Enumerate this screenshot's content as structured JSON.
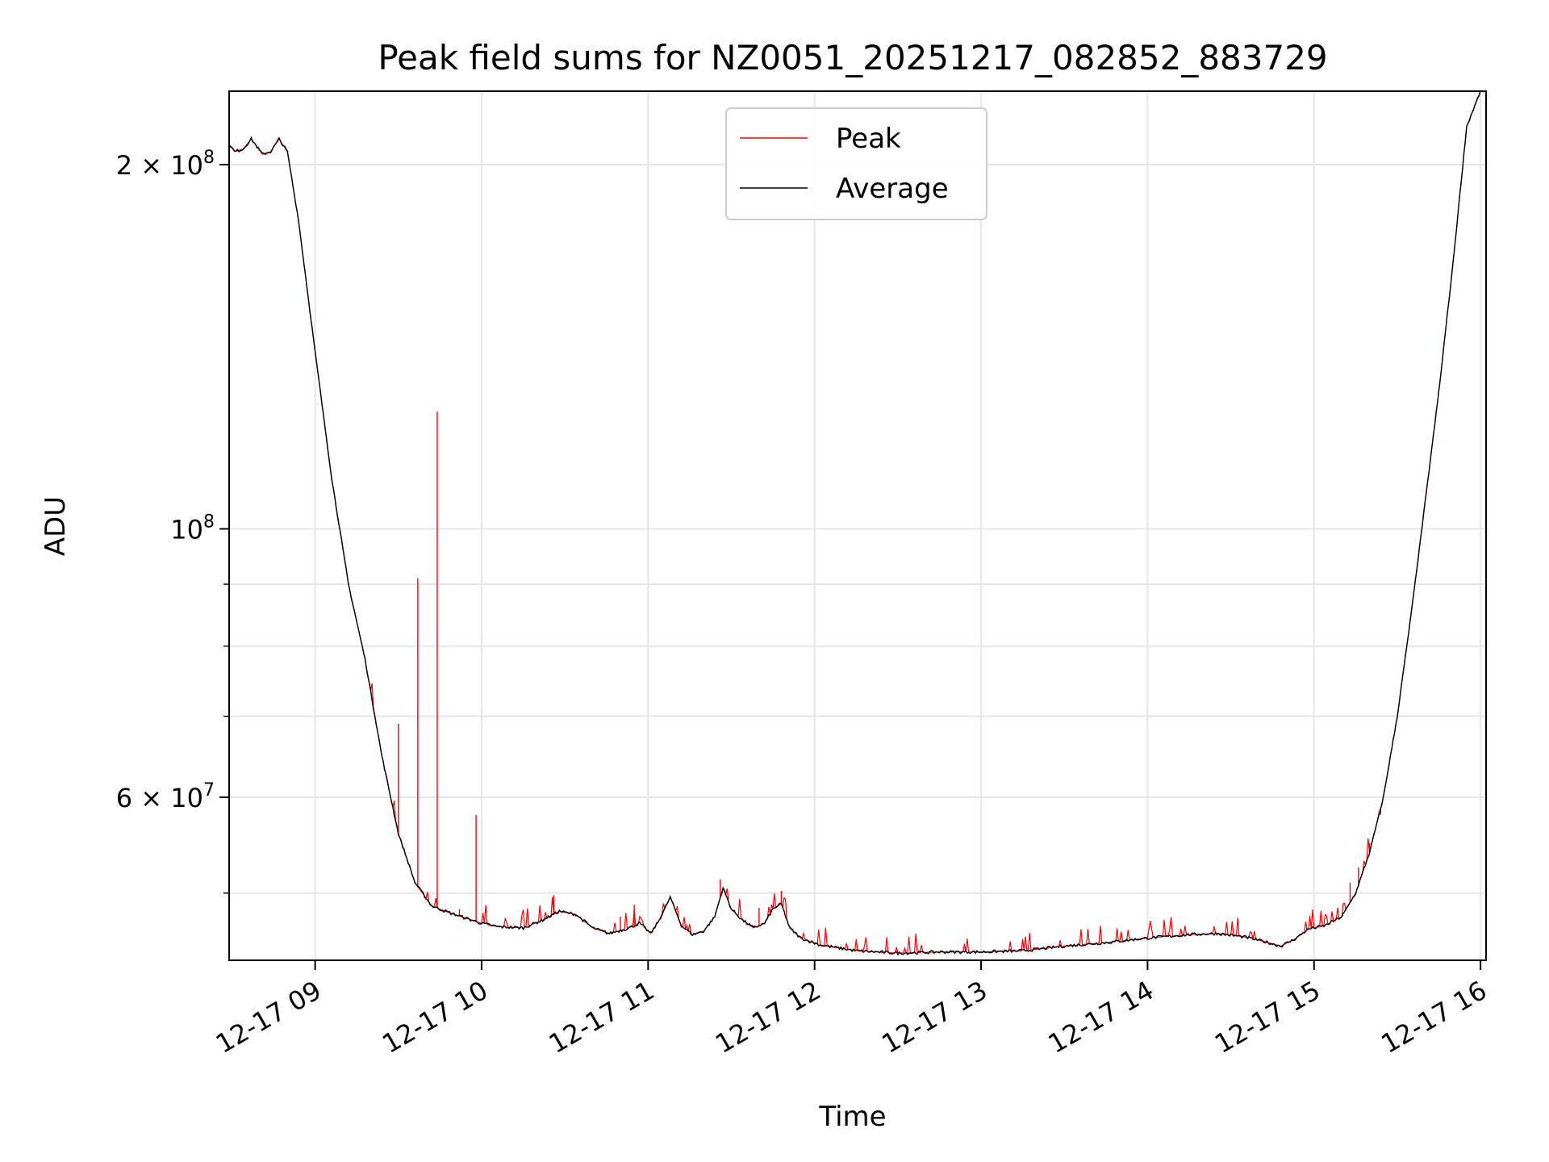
{
  "chart_data": {
    "type": "line",
    "title": "Peak field sums for NZ0051_20251217_082852_883729",
    "xlabel": "Time",
    "ylabel": "ADU",
    "y_scale": "log",
    "grid": true,
    "legend_position": "top-center",
    "xlim": [
      "2025-12-17 08:29",
      "2025-12-17 16:02"
    ],
    "ylim": [
      44000000,
      230000000
    ],
    "x_ticks": [
      {
        "value": "2025-12-17 09:00",
        "label": "12-17 09"
      },
      {
        "value": "2025-12-17 10:00",
        "label": "12-17 10"
      },
      {
        "value": "2025-12-17 11:00",
        "label": "12-17 11"
      },
      {
        "value": "2025-12-17 12:00",
        "label": "12-17 12"
      },
      {
        "value": "2025-12-17 13:00",
        "label": "12-17 13"
      },
      {
        "value": "2025-12-17 14:00",
        "label": "12-17 14"
      },
      {
        "value": "2025-12-17 15:00",
        "label": "12-17 15"
      },
      {
        "value": "2025-12-17 16:00",
        "label": "12-17 16"
      }
    ],
    "y_major_ticks": [
      {
        "value": 100000000,
        "mantissa": "",
        "exponent": "8",
        "label": "10^8"
      },
      {
        "value": 200000000,
        "mantissa": "2",
        "exponent": "8",
        "label": "2×10^8"
      },
      {
        "value": 60000000,
        "mantissa": "6",
        "exponent": "7",
        "label": "6×10^7"
      }
    ],
    "y_minor_ticks": [
      50000000,
      70000000,
      80000000,
      90000000
    ],
    "series": [
      {
        "name": "Average",
        "color": "#000000",
        "points": [
          [
            "2025-12-17 08:29",
            208000000
          ],
          [
            "2025-12-17 08:31",
            205000000
          ],
          [
            "2025-12-17 08:34",
            206000000
          ],
          [
            "2025-12-17 08:37",
            210000000
          ],
          [
            "2025-12-17 08:41",
            204000000
          ],
          [
            "2025-12-17 08:44",
            205000000
          ],
          [
            "2025-12-17 08:47",
            210000000
          ],
          [
            "2025-12-17 08:50",
            205000000
          ],
          [
            "2025-12-17 08:54",
            180000000
          ],
          [
            "2025-12-17 09:00",
            140000000
          ],
          [
            "2025-12-17 09:06",
            110000000
          ],
          [
            "2025-12-17 09:12",
            90000000
          ],
          [
            "2025-12-17 09:18",
            78000000
          ],
          [
            "2025-12-17 09:24",
            65000000
          ],
          [
            "2025-12-17 09:30",
            56000000
          ],
          [
            "2025-12-17 09:36",
            51000000
          ],
          [
            "2025-12-17 09:42",
            48800000
          ],
          [
            "2025-12-17 09:48",
            48200000
          ],
          [
            "2025-12-17 09:54",
            47700000
          ],
          [
            "2025-12-17 10:00",
            47200000
          ],
          [
            "2025-12-17 10:06",
            46900000
          ],
          [
            "2025-12-17 10:15",
            46800000
          ],
          [
            "2025-12-17 10:22",
            47500000
          ],
          [
            "2025-12-17 10:28",
            48300000
          ],
          [
            "2025-12-17 10:34",
            48000000
          ],
          [
            "2025-12-17 10:40",
            46800000
          ],
          [
            "2025-12-17 10:46",
            46300000
          ],
          [
            "2025-12-17 10:52",
            46700000
          ],
          [
            "2025-12-17 10:57",
            47200000
          ],
          [
            "2025-12-17 11:01",
            46300000
          ],
          [
            "2025-12-17 11:04",
            47500000
          ],
          [
            "2025-12-17 11:08",
            49600000
          ],
          [
            "2025-12-17 11:12",
            47000000
          ],
          [
            "2025-12-17 11:16",
            46200000
          ],
          [
            "2025-12-17 11:20",
            46500000
          ],
          [
            "2025-12-17 11:24",
            47800000
          ],
          [
            "2025-12-17 11:27",
            50500000
          ],
          [
            "2025-12-17 11:30",
            48500000
          ],
          [
            "2025-12-17 11:34",
            47500000
          ],
          [
            "2025-12-17 11:38",
            46800000
          ],
          [
            "2025-12-17 11:42",
            47200000
          ],
          [
            "2025-12-17 11:45",
            48500000
          ],
          [
            "2025-12-17 11:48",
            49000000
          ],
          [
            "2025-12-17 11:51",
            46800000
          ],
          [
            "2025-12-17 11:55",
            45900000
          ],
          [
            "2025-12-17 12:02",
            45300000
          ],
          [
            "2025-12-17 12:15",
            44800000
          ],
          [
            "2025-12-17 12:30",
            44600000
          ],
          [
            "2025-12-17 12:45",
            44700000
          ],
          [
            "2025-12-17 13:00",
            44700000
          ],
          [
            "2025-12-17 13:15",
            44800000
          ],
          [
            "2025-12-17 13:30",
            45200000
          ],
          [
            "2025-12-17 13:45",
            45500000
          ],
          [
            "2025-12-17 14:00",
            45900000
          ],
          [
            "2025-12-17 14:15",
            46200000
          ],
          [
            "2025-12-17 14:25",
            46300000
          ],
          [
            "2025-12-17 14:35",
            46000000
          ],
          [
            "2025-12-17 14:42",
            45600000
          ],
          [
            "2025-12-17 14:48",
            45200000
          ],
          [
            "2025-12-17 14:53",
            45800000
          ],
          [
            "2025-12-17 14:58",
            46700000
          ],
          [
            "2025-12-17 15:04",
            47000000
          ],
          [
            "2025-12-17 15:10",
            47800000
          ],
          [
            "2025-12-17 15:15",
            50000000
          ],
          [
            "2025-12-17 15:20",
            54000000
          ],
          [
            "2025-12-17 15:25",
            60000000
          ],
          [
            "2025-12-17 15:30",
            70000000
          ],
          [
            "2025-12-17 15:35",
            85000000
          ],
          [
            "2025-12-17 15:40",
            105000000
          ],
          [
            "2025-12-17 15:45",
            130000000
          ],
          [
            "2025-12-17 15:50",
            165000000
          ],
          [
            "2025-12-17 15:55",
            215000000
          ],
          [
            "2025-12-17 16:00",
            230000000
          ]
        ]
      },
      {
        "name": "Peak",
        "color": "#ff0000",
        "spikes": [
          [
            "2025-12-17 09:30",
            69000000
          ],
          [
            "2025-12-17 09:37",
            91000000
          ],
          [
            "2025-12-17 09:44",
            125000000
          ],
          [
            "2025-12-17 09:58",
            58000000
          ],
          [
            "2025-12-17 09:52",
            48500000
          ],
          [
            "2025-12-17 10:26",
            49800000
          ],
          [
            "2025-12-17 10:50",
            47800000
          ],
          [
            "2025-12-17 10:55",
            48900000
          ],
          [
            "2025-12-17 11:26",
            51300000
          ],
          [
            "2025-12-17 11:40",
            48600000
          ],
          [
            "2025-12-17 11:48",
            50200000
          ],
          [
            "2025-12-17 15:20",
            55000000
          ],
          [
            "2025-12-17 15:24",
            58000000
          ],
          [
            "2025-12-17 15:16",
            52500000
          ],
          [
            "2025-12-17 15:13",
            51000000
          ]
        ]
      }
    ]
  }
}
